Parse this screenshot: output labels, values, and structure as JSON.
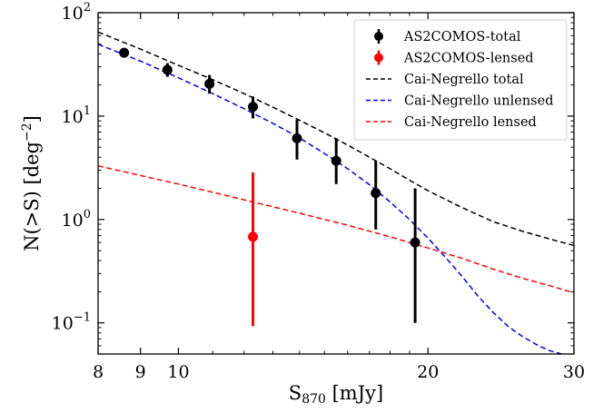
{
  "chart_data": {
    "type": "scatter",
    "title": "",
    "xlabel": "S",
    "xlabel_sub": "870",
    "xlabel_unit": " [mJy]",
    "ylabel": "N(>S) [deg",
    "ylabel_sup": "−2",
    "ylabel_end": "]",
    "x_scale": "log",
    "y_scale": "log",
    "xlim": [
      8,
      30
    ],
    "ylim": [
      0.05,
      100
    ],
    "x_ticks": [
      {
        "value": 8,
        "label": "8"
      },
      {
        "value": 9,
        "label": "9"
      },
      {
        "value": 10,
        "label": "10"
      },
      {
        "value": 20,
        "label": "20"
      },
      {
        "value": 30,
        "label": "30"
      }
    ],
    "y_ticks": [
      {
        "value": 0.1,
        "base": "10",
        "exp": "−1"
      },
      {
        "value": 1,
        "base": "10",
        "exp": "0"
      },
      {
        "value": 10,
        "base": "10",
        "exp": "1"
      },
      {
        "value": 100,
        "base": "10",
        "exp": "2"
      }
    ],
    "grid": false,
    "legend_position": "top-right",
    "series": [
      {
        "name": "AS2COMOS-total",
        "kind": "points",
        "color": "#000000",
        "points": [
          {
            "x": 8.6,
            "y": 41.0,
            "lo": 37.5,
            "hi": 45.0
          },
          {
            "x": 9.7,
            "y": 28.0,
            "lo": 24.0,
            "hi": 32.5
          },
          {
            "x": 10.9,
            "y": 20.5,
            "lo": 16.5,
            "hi": 25.0
          },
          {
            "x": 12.3,
            "y": 12.3,
            "lo": 9.5,
            "hi": 15.5
          },
          {
            "x": 13.9,
            "y": 6.1,
            "lo": 3.8,
            "hi": 9.2
          },
          {
            "x": 15.5,
            "y": 3.7,
            "lo": 2.2,
            "hi": 6.1
          },
          {
            "x": 17.3,
            "y": 1.8,
            "lo": 0.8,
            "hi": 3.7
          },
          {
            "x": 19.3,
            "y": 0.6,
            "lo": 0.1,
            "hi": 2.0
          }
        ]
      },
      {
        "name": "AS2COMOS-lensed",
        "kind": "points",
        "color": "#ff0000",
        "points": [
          {
            "x": 12.3,
            "y": 0.68,
            "lo": 0.093,
            "hi": 2.85
          }
        ]
      },
      {
        "name": "Cai-Negrello total",
        "kind": "dashed-line",
        "color": "#000000",
        "x": [
          8,
          9,
          10,
          11,
          12,
          13,
          14,
          15,
          16,
          17,
          18,
          19,
          20,
          22,
          24,
          26,
          28,
          30
        ],
        "y": [
          65,
          44.5,
          31,
          22.5,
          16.5,
          12.2,
          9.1,
          6.9,
          5.25,
          4.0,
          3.1,
          2.4,
          1.9,
          1.3,
          0.95,
          0.77,
          0.65,
          0.56
        ]
      },
      {
        "name": "Cai-Negrello unlensed",
        "kind": "dashed-line",
        "color": "#0000ee",
        "x": [
          8,
          9,
          10,
          11,
          12,
          13,
          14,
          15,
          16,
          17,
          18,
          19,
          20,
          21,
          22,
          23,
          24,
          25,
          26,
          27,
          28,
          29
        ],
        "y": [
          49.5,
          34,
          23.5,
          16.5,
          11.8,
          8.5,
          6.15,
          4.35,
          3.1,
          2.17,
          1.48,
          1.0,
          0.66,
          0.43,
          0.28,
          0.18,
          0.125,
          0.092,
          0.074,
          0.062,
          0.054,
          0.05
        ]
      },
      {
        "name": "Cai-Negrello lensed",
        "kind": "dashed-line",
        "color": "#ff0000",
        "x": [
          8,
          10,
          12,
          14,
          16,
          18,
          20,
          22,
          24,
          26,
          28,
          30
        ],
        "y": [
          3.3,
          2.2,
          1.55,
          1.15,
          0.88,
          0.68,
          0.53,
          0.42,
          0.33,
          0.27,
          0.23,
          0.195
        ]
      }
    ]
  }
}
